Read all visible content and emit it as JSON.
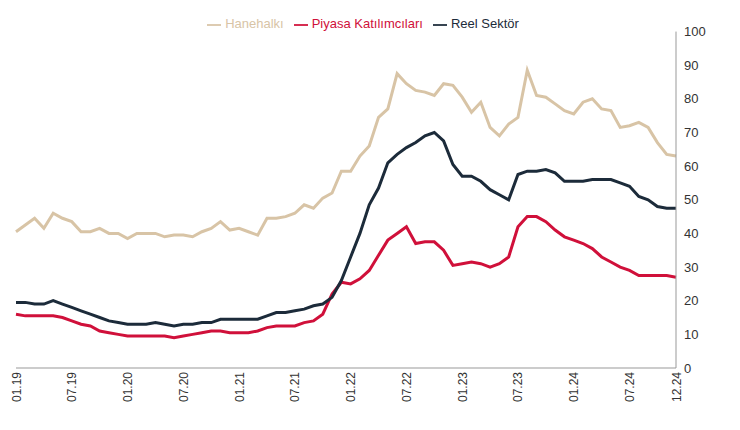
{
  "chart_data": {
    "type": "line",
    "categories": [
      "01.19",
      null,
      null,
      null,
      null,
      null,
      "07.19",
      null,
      null,
      null,
      null,
      null,
      "01.20",
      null,
      null,
      null,
      null,
      null,
      "07.20",
      null,
      null,
      null,
      null,
      null,
      "01.21",
      null,
      null,
      null,
      null,
      null,
      "07.21",
      null,
      null,
      null,
      null,
      null,
      "01.22",
      null,
      null,
      null,
      null,
      null,
      "07.22",
      null,
      null,
      null,
      null,
      null,
      "01.23",
      null,
      null,
      null,
      null,
      null,
      "07.23",
      null,
      null,
      null,
      null,
      null,
      "01.24",
      null,
      null,
      null,
      null,
      null,
      "07.24",
      null,
      null,
      null,
      null,
      "12.24"
    ],
    "series": [
      {
        "name": "Piyasa Katılımcıları",
        "color": "#d0103a",
        "values": [
          16,
          15.5,
          15.5,
          15.5,
          15.5,
          15,
          14,
          13,
          12.5,
          11,
          10.5,
          10,
          9.5,
          9.5,
          9.5,
          9.5,
          9.5,
          9,
          9.5,
          10,
          10.5,
          11,
          11,
          10.5,
          10.5,
          10.5,
          11,
          12,
          12.5,
          12.5,
          12.5,
          13.5,
          14,
          16,
          22,
          25.5,
          25,
          26.5,
          29,
          33.5,
          38,
          40,
          42,
          37,
          37.5,
          37.5,
          35,
          30.5,
          31,
          31.5,
          31,
          30,
          31,
          33,
          42,
          45,
          45,
          43.5,
          41,
          39,
          38,
          37,
          35.5,
          33,
          31.5,
          30,
          29,
          27.5,
          27.5,
          27.5,
          27.5,
          27
        ]
      },
      {
        "name": "Reel Sektör",
        "color": "#1c2b3a",
        "values": [
          19.5,
          19.5,
          19,
          19,
          20,
          19,
          18,
          17,
          16,
          15,
          14,
          13.5,
          13,
          13,
          13,
          13.5,
          13,
          12.5,
          13,
          13,
          13.5,
          13.5,
          14.5,
          14.5,
          14.5,
          14.5,
          14.5,
          15.5,
          16.5,
          16.5,
          17,
          17.5,
          18.5,
          19,
          21,
          26,
          33,
          40,
          48.5,
          53.5,
          61,
          63.5,
          65.5,
          67,
          69,
          70,
          67.5,
          60.5,
          57,
          57,
          55.5,
          53,
          51.5,
          50,
          57.5,
          58.5,
          58.5,
          59,
          58,
          55.5,
          55.5,
          55.5,
          56,
          56,
          56,
          55,
          54,
          51,
          50,
          48,
          47.5,
          47.5
        ]
      },
      {
        "name": "Hanehalkı",
        "color": "#d8c4a6",
        "values": [
          40.5,
          42.5,
          44.5,
          41.5,
          46,
          44.5,
          43.5,
          40.5,
          40.5,
          41.5,
          40,
          40,
          38.5,
          40,
          40,
          40,
          39,
          39.5,
          39.5,
          39,
          40.5,
          41.5,
          43.5,
          41,
          41.5,
          40.5,
          39.5,
          44.5,
          44.5,
          45,
          46,
          48.5,
          47.5,
          50.5,
          52,
          58.5,
          58.5,
          63,
          66,
          74.5,
          77,
          87.5,
          84.5,
          82.5,
          82,
          81,
          84.5,
          84,
          80.5,
          76,
          79,
          71.5,
          69,
          72.5,
          74.5,
          88.5,
          81,
          80.5,
          78.5,
          76.5,
          75.5,
          79,
          80,
          77,
          76.5,
          71.5,
          72,
          73,
          71.5,
          67,
          63.5,
          63
        ]
      }
    ],
    "ylim": [
      0,
      100
    ],
    "yticks": [
      0,
      10,
      20,
      30,
      40,
      50,
      60,
      70,
      80,
      90,
      100
    ],
    "grid": false,
    "legend": "top"
  }
}
